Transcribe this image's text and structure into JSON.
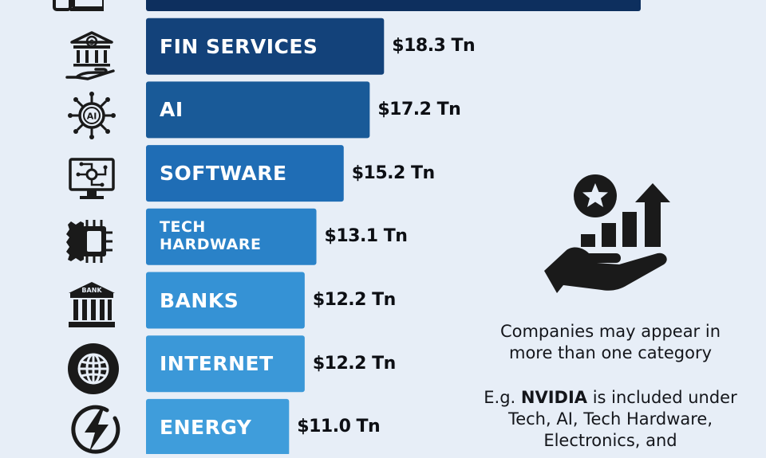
{
  "chart_data": {
    "type": "bar",
    "orientation": "horizontal",
    "categories": [
      "",
      "FIN SERVICES",
      "AI",
      "SOFTWARE",
      "TECH HARDWARE",
      "BANKS",
      "INTERNET",
      "ENERGY"
    ],
    "values": [
      null,
      18.3,
      17.2,
      15.2,
      13.1,
      12.2,
      12.2,
      11.0
    ],
    "value_labels": [
      "",
      "$18.3 Tn",
      "$17.2 Tn",
      "$15.2 Tn",
      "$13.1 Tn",
      "$12.2 Tn",
      "$12.2 Tn",
      "$11.0 Tn"
    ],
    "category_display": [
      [],
      [
        "FIN SERVICES"
      ],
      [
        "AI"
      ],
      [
        "SOFTWARE"
      ],
      [
        "TECH",
        "HARDWARE"
      ],
      [
        "BANKS"
      ],
      [
        "INTERNET"
      ],
      [
        "ENERGY"
      ]
    ],
    "icons": [
      "devices-icon",
      "financial-services-icon",
      "ai-chip-icon",
      "software-monitor-icon",
      "tech-hardware-chip-icon",
      "bank-icon",
      "internet-globe-icon",
      "energy-bolt-icon"
    ],
    "bank_icon_text": "BANK",
    "ai_icon_text": "AI",
    "bar_colors": [
      "#0d2f5e",
      "#13427a",
      "#195a98",
      "#1f6db5",
      "#2a82c8",
      "#3592d5",
      "#3b98d8",
      "#3f9ddb"
    ]
  },
  "side_panel": {
    "icon": "hand-growth-chart-star-icon",
    "note_line1": "Companies may appear in",
    "note_line2": "more than one category",
    "example_prefix": "E.g. ",
    "example_brand": "NVIDIA",
    "example_rest1": " is included under",
    "example_line2": "Tech, AI, Tech Hardware,",
    "example_line3": "Electronics, and"
  },
  "colors": {
    "background": "#e7eef7",
    "icon": "#1a1a1a",
    "value_text": "#0d0f14"
  }
}
